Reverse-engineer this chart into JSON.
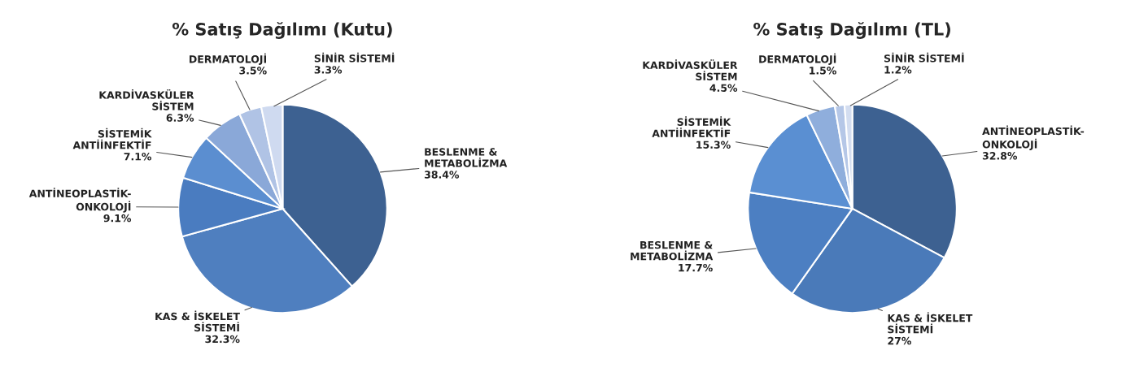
{
  "chart_data": [
    {
      "type": "pie",
      "title": "% Satış Dağılımı (Kutu)",
      "categories": [
        "BESLENME &\nMETABOLİZMA",
        "KAS & İSKELET\nSİSTEMİ",
        "ANTİNEOPLASTİK-\nONKOLOJİ",
        "SİSTEMİK\nANTİİNFEKTİF",
        "KARDİVASKÜLER\nSİSTEM",
        "DERMATOLOJİ",
        "SİNİR SİSTEMİ"
      ],
      "values": [
        38.4,
        32.3,
        9.1,
        7.1,
        6.3,
        3.5,
        3.3
      ],
      "value_labels": [
        "38.4%",
        "32.3%",
        "9.1%",
        "7.1%",
        "6.3%",
        "3.5%",
        "3.3%"
      ],
      "colors": [
        "#3d6191",
        "#4f7fbf",
        "#4a7cc0",
        "#5b8ed0",
        "#8aa8d8",
        "#b0c3e5",
        "#cfdaf0"
      ]
    },
    {
      "type": "pie",
      "title": "% Satış Dağılımı (TL)",
      "categories": [
        "ANTİNEOPLASTİK-\nONKOLOJİ",
        "KAS & İSKELET\nSİSTEMİ",
        "BESLENME &\nMETABOLİZMA",
        "SİSTEMİK\nANTİİNFEKTİF",
        "KARDİVASKÜLER\nSİSTEM",
        "DERMATOLOJİ",
        "SİNİR SİSTEMİ"
      ],
      "values": [
        32.8,
        27,
        17.7,
        15.3,
        4.5,
        1.5,
        1.2
      ],
      "value_labels": [
        "32.8%",
        "27%",
        "17.7%",
        "15.3%",
        "4.5%",
        "1.5%",
        "1.2%"
      ],
      "colors": [
        "#3d6191",
        "#4a7ab9",
        "#4c7fc2",
        "#5a8fd2",
        "#8faedc",
        "#b5c7e7",
        "#d3ddf0"
      ]
    }
  ]
}
